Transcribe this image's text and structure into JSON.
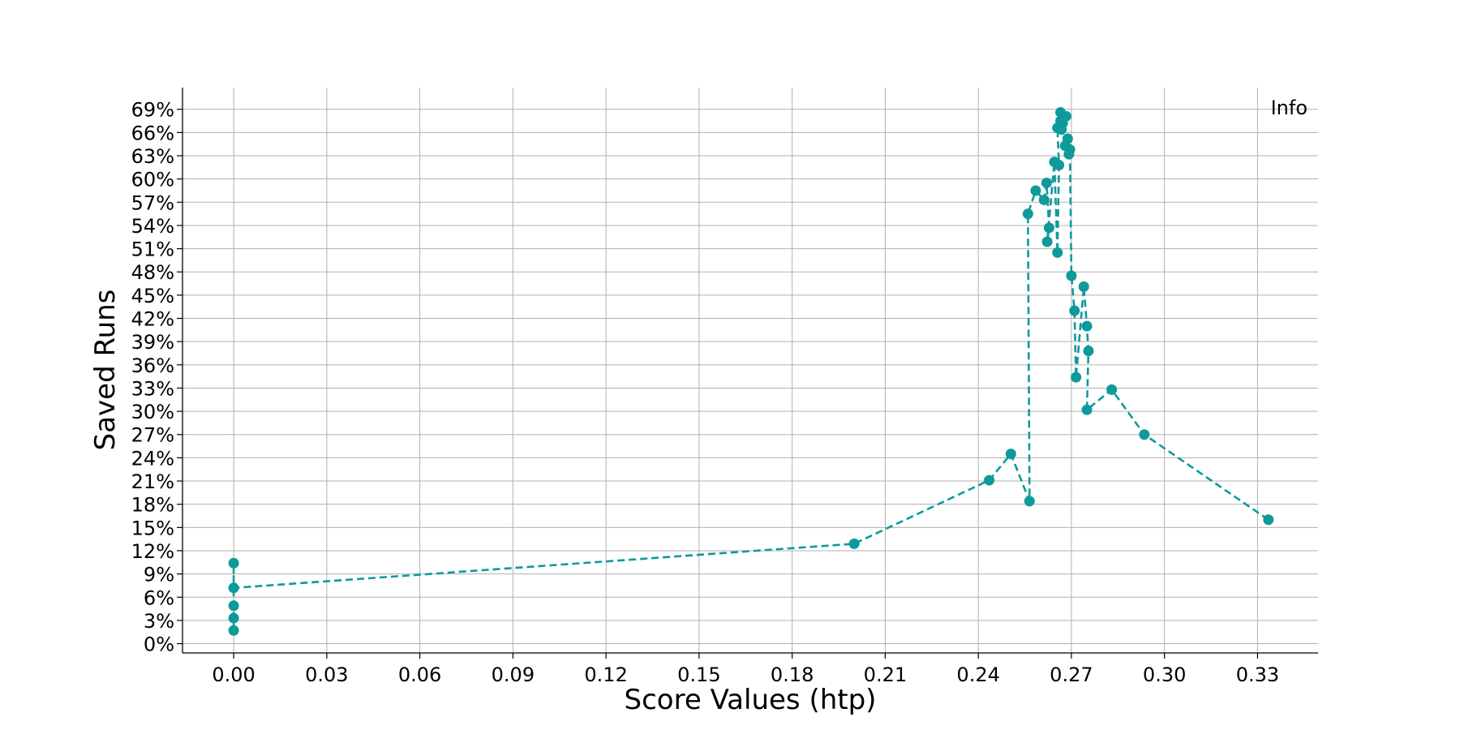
{
  "chart_data": {
    "type": "line",
    "title": "",
    "xlabel": "Score Values (htp)",
    "ylabel": "Saved Runs",
    "xlim": [
      -0.0165,
      0.3495
    ],
    "ylim": [
      -0.012,
      0.718
    ],
    "x_ticks": [
      0.0,
      0.03,
      0.06,
      0.09,
      0.12,
      0.15,
      0.18,
      0.21,
      0.24,
      0.27,
      0.3,
      0.33
    ],
    "x_tick_labels": [
      "0.00",
      "0.03",
      "0.06",
      "0.09",
      "0.12",
      "0.15",
      "0.18",
      "0.21",
      "0.24",
      "0.27",
      "0.30",
      "0.33"
    ],
    "y_ticks": [
      0.0,
      0.03,
      0.06,
      0.09,
      0.12,
      0.15,
      0.18,
      0.21,
      0.24,
      0.27,
      0.3,
      0.33,
      0.36,
      0.39,
      0.42,
      0.45,
      0.48,
      0.51,
      0.54,
      0.57,
      0.6,
      0.63,
      0.66,
      0.69
    ],
    "y_tick_labels": [
      "0%",
      "3%",
      "6%",
      "9%",
      "12%",
      "15%",
      "18%",
      "21%",
      "24%",
      "27%",
      "30%",
      "33%",
      "36%",
      "39%",
      "42%",
      "45%",
      "48%",
      "51%",
      "54%",
      "57%",
      "60%",
      "63%",
      "66%",
      "69%"
    ],
    "grid": true,
    "legend": {
      "label": "Info",
      "placement": "top-right"
    },
    "color": "#0e9a9a",
    "series": [
      {
        "name": "Info",
        "x": [
          0.0,
          0.0,
          0.0,
          0.0,
          0.0,
          0.2,
          0.2435,
          0.2505,
          0.2565,
          0.256,
          0.2585,
          0.2612,
          0.262,
          0.2628,
          0.2622,
          0.2645,
          0.2655,
          0.266,
          0.2655,
          0.2665,
          0.2665,
          0.2672,
          0.2683,
          0.2668,
          0.268,
          0.2692,
          0.2688,
          0.2695,
          0.27,
          0.271,
          0.2715,
          0.274,
          0.275,
          0.2755,
          0.275,
          0.283,
          0.2935,
          0.3335
        ],
        "y": [
          0.017,
          0.033,
          0.049,
          0.104,
          0.072,
          0.129,
          0.211,
          0.245,
          0.184,
          0.555,
          0.585,
          0.573,
          0.595,
          0.537,
          0.519,
          0.622,
          0.505,
          0.618,
          0.666,
          0.686,
          0.675,
          0.672,
          0.681,
          0.664,
          0.643,
          0.632,
          0.652,
          0.638,
          0.475,
          0.43,
          0.344,
          0.461,
          0.41,
          0.378,
          0.302,
          0.328,
          0.27,
          0.16
        ]
      }
    ]
  }
}
